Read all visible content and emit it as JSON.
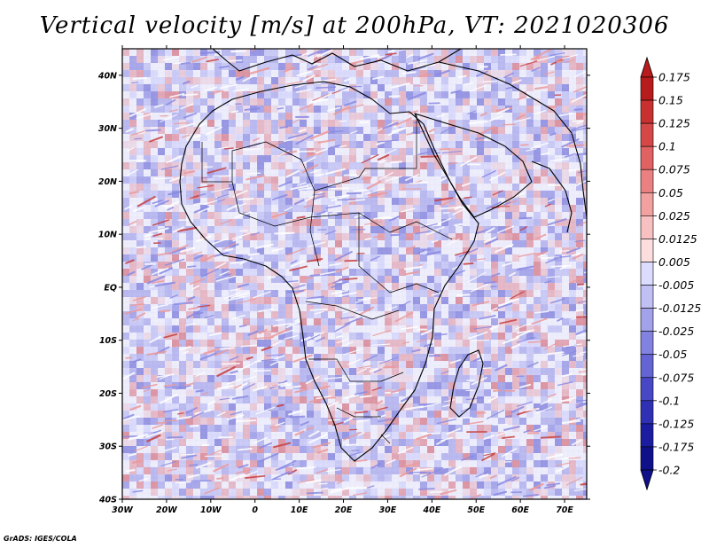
{
  "title": "Vertical velocity [m/s] at 200hPa, VT: 2021020306",
  "credit": "GrADS: IGES/COLA",
  "map": {
    "type": "filled-contour",
    "variable": "Vertical velocity",
    "units": "m/s",
    "level": "200hPa",
    "valid_time": "2021020306",
    "lon_range": [
      -30,
      75
    ],
    "lat_range": [
      -40,
      45
    ],
    "x_tick_labels": [
      "30W",
      "20W",
      "10W",
      "0",
      "10E",
      "20E",
      "30E",
      "40E",
      "50E",
      "60E",
      "70E"
    ],
    "y_tick_labels": [
      "40N",
      "30N",
      "20N",
      "10N",
      "EQ",
      "10S",
      "20S",
      "30S",
      "40S"
    ]
  },
  "colorbar": {
    "labels": [
      "0.175",
      "0.15",
      "0.125",
      "0.1",
      "0.075",
      "0.05",
      "0.025",
      "0.0125",
      "0.005",
      "-0.005",
      "-0.0125",
      "-0.025",
      "-0.05",
      "-0.075",
      "-0.1",
      "-0.125",
      "-0.175",
      "-0.2"
    ],
    "colors": [
      "#b81b1b",
      "#c93030",
      "#d64848",
      "#e06262",
      "#ea8080",
      "#f2a0a0",
      "#f8c0c0",
      "#fcdede",
      "#ffffff",
      "#dcdcff",
      "#c0c0f4",
      "#a2a2ea",
      "#8282e0",
      "#6464d4",
      "#4848c6",
      "#3030b4",
      "#1c1ca0",
      "#10108a"
    ]
  }
}
